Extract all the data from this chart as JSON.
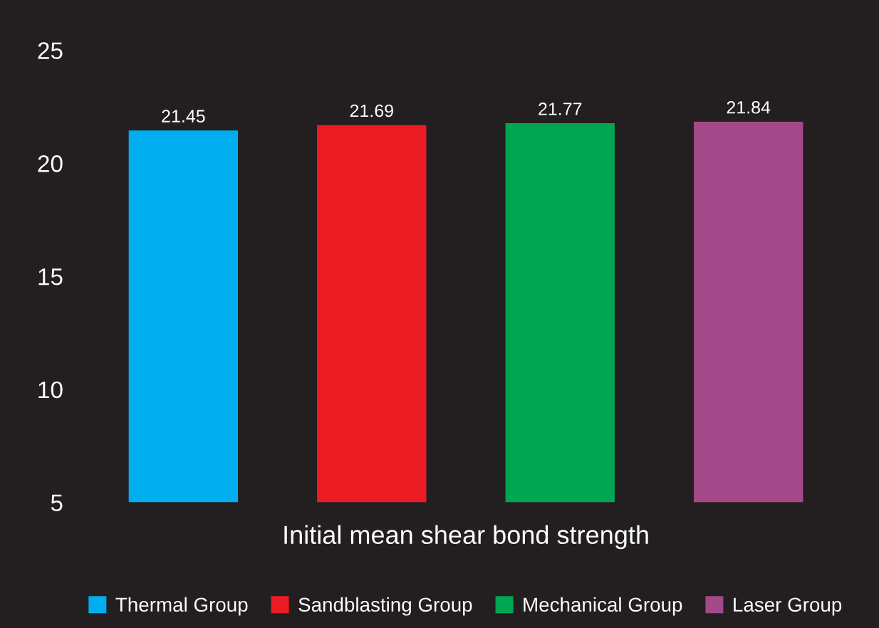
{
  "chart_data": {
    "type": "bar",
    "xlabel": "Initial mean shear bond strength",
    "categories": [
      null,
      null,
      null,
      null
    ],
    "stacked": true,
    "series": [
      {
        "name": "Thermal Group",
        "color": "#00aeef",
        "values": [
          21.45,
          null,
          null,
          null
        ]
      },
      {
        "name": "Sandblasting Group",
        "color": "#ed1c24",
        "values": [
          null,
          21.69,
          null,
          null
        ]
      },
      {
        "name": "Mechanical Group",
        "color": "#00a651",
        "values": [
          null,
          null,
          21.77,
          null
        ]
      },
      {
        "name": "Laser Group",
        "color": "#a3498a",
        "values": [
          null,
          null,
          null,
          21.84
        ]
      }
    ],
    "ylim": [
      5,
      25
    ],
    "yticks": [
      5,
      10,
      15,
      20,
      25
    ],
    "data_labels": true,
    "legend": "bottom",
    "grid": false
  }
}
